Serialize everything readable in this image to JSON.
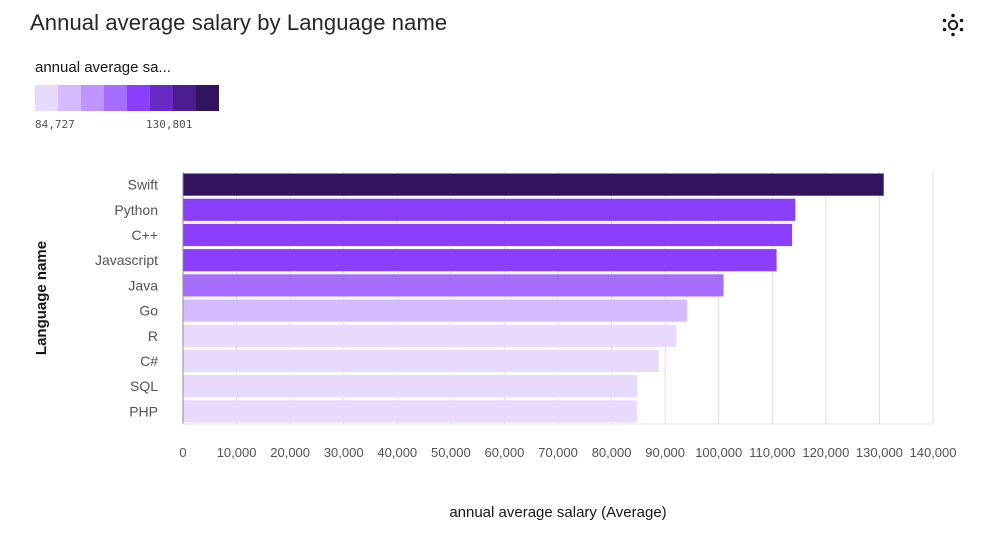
{
  "header": {
    "title": "Annual average salary by Language name",
    "settings_icon": "settings-icon"
  },
  "legend": {
    "title": "annual average sa...",
    "min_label": "84,727",
    "max_label": "130,801",
    "colors": [
      "#e8daff",
      "#d4bbff",
      "#be95ff",
      "#a56eff",
      "#8a3ffc",
      "#6929c4",
      "#491d8b",
      "#31135e"
    ]
  },
  "chart_data": {
    "type": "bar",
    "orientation": "horizontal",
    "title": "Annual average salary by Language name",
    "xlabel": "annual average salary (Average)",
    "ylabel": "Language name",
    "xlim": [
      0,
      140000
    ],
    "x_ticks": [
      0,
      10000,
      20000,
      30000,
      40000,
      50000,
      60000,
      70000,
      80000,
      90000,
      100000,
      110000,
      120000,
      130000,
      140000
    ],
    "x_tick_labels": [
      "0",
      "10,000",
      "20,000",
      "30,000",
      "40,000",
      "50,000",
      "60,000",
      "70,000",
      "80,000",
      "90,000",
      "100,000",
      "110,000",
      "120,000",
      "130,000",
      "140,000"
    ],
    "categories": [
      "Swift",
      "Python",
      "C++",
      "Javascript",
      "Java",
      "Go",
      "R",
      "C#",
      "SQL",
      "PHP"
    ],
    "values": [
      130801,
      114300,
      113700,
      110800,
      100900,
      94100,
      92100,
      88800,
      84800,
      84727
    ],
    "bar_colors": [
      "#31135e",
      "#8a3ffc",
      "#8a3ffc",
      "#8a3ffc",
      "#a56eff",
      "#d4bbff",
      "#e8daff",
      "#e8daff",
      "#e8daff",
      "#e8daff"
    ],
    "grid": true
  }
}
